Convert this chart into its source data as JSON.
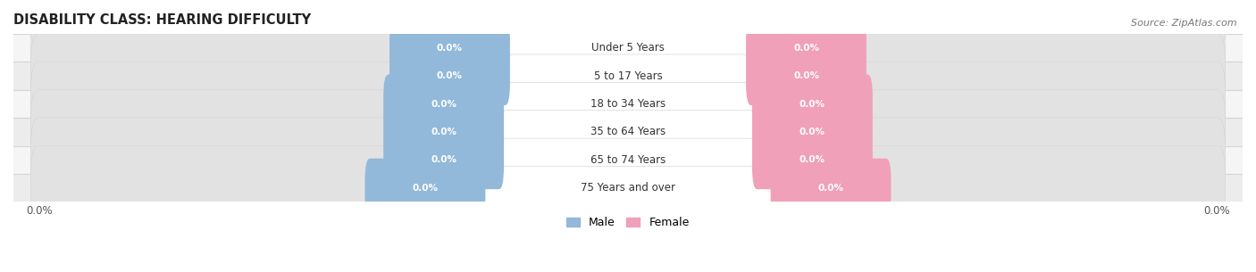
{
  "title": "DISABILITY CLASS: HEARING DIFFICULTY",
  "source": "Source: ZipAtlas.com",
  "categories": [
    "Under 5 Years",
    "5 to 17 Years",
    "18 to 34 Years",
    "35 to 64 Years",
    "65 to 74 Years",
    "75 Years and over"
  ],
  "male_values": [
    0.0,
    0.0,
    0.0,
    0.0,
    0.0,
    0.0
  ],
  "female_values": [
    0.0,
    0.0,
    0.0,
    0.0,
    0.0,
    0.0
  ],
  "male_color": "#92b9d9",
  "female_color": "#f0a0b8",
  "male_label": "Male",
  "female_label": "Female",
  "title_fontsize": 10.5,
  "source_fontsize": 8,
  "label_fontsize": 8.5,
  "value_fontsize": 7.5,
  "x_left_label": "0.0%",
  "x_right_label": "0.0%",
  "background_color": "#ffffff",
  "row_bg_even": "#f5f5f5",
  "row_bg_odd": "#ececec",
  "separator_color": "#d5d5d5",
  "bar_bg_color": "#e2e2e2",
  "cat_label_bg": "#ffffff",
  "xlim_left": -100,
  "xlim_right": 100,
  "max_bar": 100
}
